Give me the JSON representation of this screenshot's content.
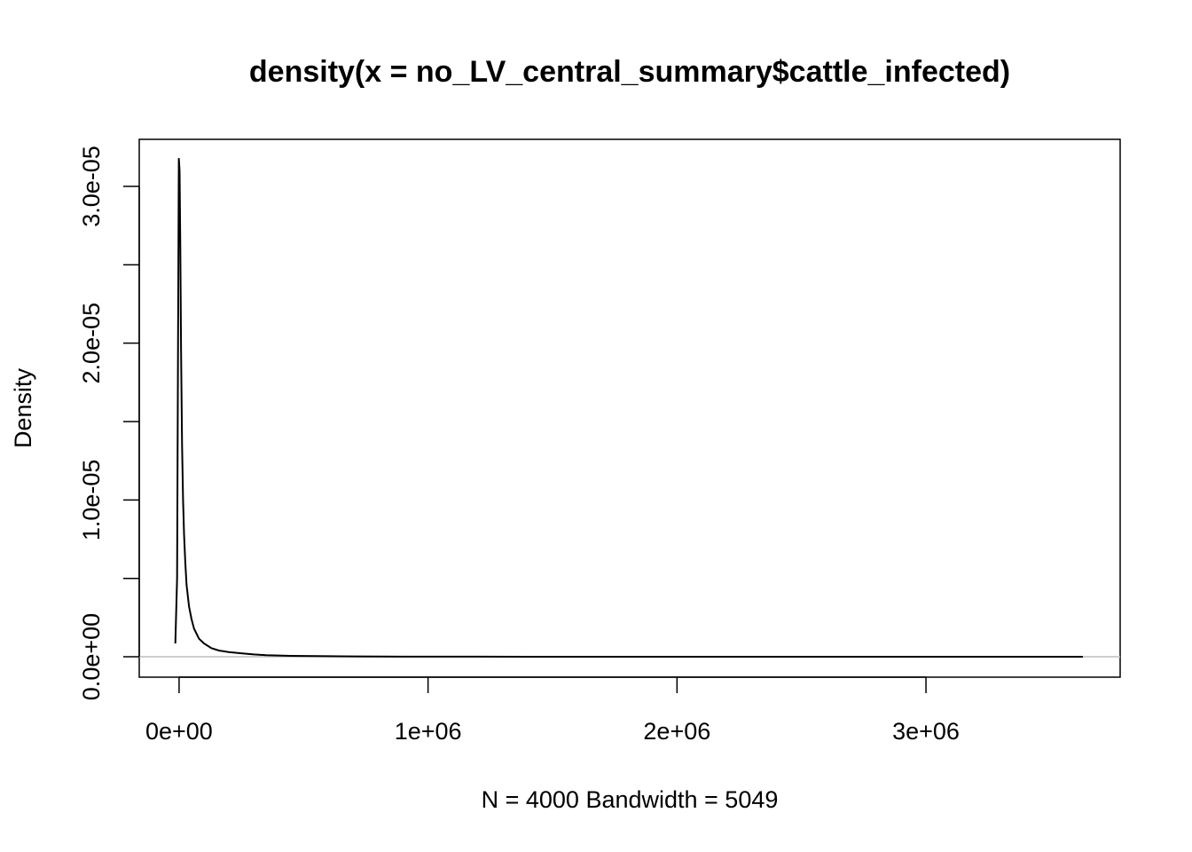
{
  "chart_data": {
    "type": "line",
    "title": "density(x = no_LV_central_summary$cattle_infected)",
    "xlabel": "N = 4000   Bandwidth = 5049",
    "ylabel": "Density",
    "xlim": [
      -160000,
      3780000
    ],
    "ylim": [
      -1.3e-06,
      3.3e-05
    ],
    "x_ticks": [
      0,
      1000000,
      2000000,
      3000000
    ],
    "x_tick_labels": [
      "0e+00",
      "1e+06",
      "2e+06",
      "3e+06"
    ],
    "y_ticks": [
      0,
      5e-06,
      1e-05,
      1.5e-05,
      2e-05,
      2.5e-05,
      3e-05
    ],
    "y_tick_labels": [
      "0.0e+00",
      "",
      "1.0e-05",
      "",
      "2.0e-05",
      "",
      "3.0e-05"
    ],
    "baseline": 0,
    "grid": false,
    "legend": "none",
    "line_color": "#000000",
    "series": [
      {
        "x": [
          -15000,
          -8000,
          -4000,
          -1000,
          2000,
          5000,
          8000,
          12000,
          16000,
          20000,
          25000,
          30000,
          40000,
          50000,
          60000,
          80000,
          100000,
          130000,
          160000,
          200000,
          250000,
          300000,
          350000,
          400000,
          450000,
          500000,
          600000,
          700000,
          800000,
          900000,
          1000000,
          1200000,
          1400000,
          1600000,
          1800000,
          2000000,
          2200000,
          2350000,
          2370000,
          2400000,
          2600000,
          2800000,
          3000000,
          3200000,
          3400000,
          3630000
        ],
        "y": [
          8.5e-07,
          5e-06,
          2.05e-05,
          3.18e-05,
          3.1e-05,
          2.6e-05,
          1.95e-05,
          1.35e-05,
          1e-05,
          7.8e-06,
          6e-06,
          4.6e-06,
          3.2e-06,
          2.4e-06,
          1.8e-06,
          1.15e-06,
          8.5e-07,
          5.5e-07,
          4e-07,
          3e-07,
          2.2e-07,
          1.5e-07,
          1e-07,
          8e-08,
          6e-08,
          5e-08,
          3.5e-08,
          2.5e-08,
          1.8e-08,
          1.2e-08,
          1e-08,
          6e-09,
          4e-09,
          3e-09,
          2e-09,
          1.5e-09,
          1e-09,
          1e-09,
          3e-09,
          1e-09,
          5e-10,
          4e-10,
          3e-10,
          2e-10,
          1e-10,
          0
        ]
      }
    ]
  }
}
